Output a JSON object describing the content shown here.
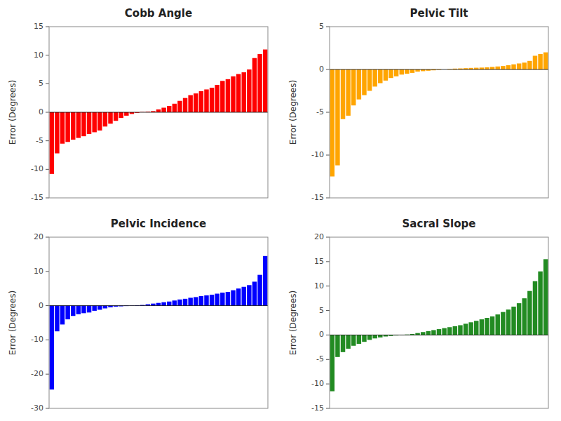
{
  "chart_data": [
    {
      "type": "bar",
      "title": "Cobb Angle",
      "y_label": "Error (Degrees)",
      "color": "#ff0000",
      "categories": [
        null,
        null,
        null,
        null,
        null,
        null,
        null,
        null,
        null,
        null,
        null,
        null,
        null,
        null,
        null,
        null,
        null,
        null,
        null,
        null,
        null,
        null,
        null,
        null,
        null,
        null,
        null,
        null,
        null,
        null,
        null,
        null,
        null,
        null,
        null,
        null,
        null,
        null,
        null,
        null,
        null
      ],
      "values": [
        -10.8,
        -7.2,
        -5.5,
        -5.2,
        -4.8,
        -4.5,
        -4.2,
        -3.8,
        -3.5,
        -3.2,
        -2.5,
        -2.0,
        -1.5,
        -1.0,
        -0.6,
        -0.3,
        -0.1,
        0.05,
        0.1,
        0.2,
        0.5,
        0.8,
        1.1,
        1.5,
        2.0,
        2.5,
        3.0,
        3.3,
        3.7,
        4.0,
        4.3,
        4.8,
        5.5,
        5.8,
        6.3,
        6.7,
        7.0,
        7.5,
        9.5,
        10.2,
        11.0
      ],
      "ylim": [
        -15,
        15
      ],
      "yticks": [
        -15,
        -10,
        -5,
        0,
        5,
        10,
        15
      ],
      "grid": false,
      "tick_labels": "y"
    },
    {
      "type": "bar",
      "title": "Pelvic Tilt",
      "y_label": "Error (Degrees)",
      "color": "#ffa500",
      "categories": [
        null,
        null,
        null,
        null,
        null,
        null,
        null,
        null,
        null,
        null,
        null,
        null,
        null,
        null,
        null,
        null,
        null,
        null,
        null,
        null,
        null,
        null,
        null,
        null,
        null,
        null,
        null,
        null,
        null,
        null,
        null,
        null,
        null,
        null,
        null,
        null,
        null,
        null,
        null,
        null,
        null
      ],
      "values": [
        -12.5,
        -11.2,
        -5.8,
        -5.4,
        -4.2,
        -3.5,
        -3.0,
        -2.5,
        -2.0,
        -1.6,
        -1.3,
        -1.0,
        -0.8,
        -0.6,
        -0.5,
        -0.4,
        -0.25,
        -0.2,
        -0.15,
        -0.1,
        -0.05,
        0.0,
        0.05,
        0.1,
        0.12,
        0.15,
        0.18,
        0.2,
        0.22,
        0.25,
        0.3,
        0.35,
        0.4,
        0.5,
        0.6,
        0.7,
        0.8,
        1.0,
        1.6,
        1.8,
        2.0
      ],
      "ylim": [
        -15,
        5
      ],
      "yticks": [
        -15,
        -10,
        -5,
        0,
        5
      ],
      "grid": false,
      "tick_labels": "y"
    },
    {
      "type": "bar",
      "title": "Pelvic Incidence",
      "y_label": "Error (Degrees)",
      "color": "#0000ff",
      "categories": [
        null,
        null,
        null,
        null,
        null,
        null,
        null,
        null,
        null,
        null,
        null,
        null,
        null,
        null,
        null,
        null,
        null,
        null,
        null,
        null,
        null,
        null,
        null,
        null,
        null,
        null,
        null,
        null,
        null,
        null,
        null,
        null,
        null,
        null,
        null,
        null,
        null,
        null,
        null,
        null,
        null
      ],
      "values": [
        -24.5,
        -7.5,
        -5.5,
        -4.0,
        -3.0,
        -2.5,
        -2.2,
        -2.0,
        -1.5,
        -1.2,
        -0.8,
        -0.5,
        -0.3,
        -0.2,
        -0.1,
        0.05,
        0.1,
        0.2,
        0.4,
        0.6,
        0.8,
        1.0,
        1.2,
        1.5,
        1.8,
        2.0,
        2.3,
        2.5,
        2.8,
        3.0,
        3.2,
        3.5,
        3.8,
        4.0,
        4.5,
        5.0,
        5.5,
        6.0,
        7.0,
        9.0,
        14.5
      ],
      "ylim": [
        -30,
        20
      ],
      "yticks": [
        -30,
        -20,
        -10,
        0,
        10,
        20
      ],
      "grid": false,
      "tick_labels": "y"
    },
    {
      "type": "bar",
      "title": "Sacral Slope",
      "y_label": "Error (Degrees)",
      "color": "#228B22",
      "categories": [
        null,
        null,
        null,
        null,
        null,
        null,
        null,
        null,
        null,
        null,
        null,
        null,
        null,
        null,
        null,
        null,
        null,
        null,
        null,
        null,
        null,
        null,
        null,
        null,
        null,
        null,
        null,
        null,
        null,
        null,
        null,
        null,
        null,
        null,
        null,
        null,
        null,
        null,
        null,
        null,
        null
      ],
      "values": [
        -11.5,
        -4.5,
        -3.5,
        -2.8,
        -2.2,
        -1.8,
        -1.4,
        -1.0,
        -0.7,
        -0.5,
        -0.3,
        -0.2,
        -0.1,
        0.05,
        0.1,
        0.2,
        0.4,
        0.6,
        0.8,
        1.0,
        1.2,
        1.4,
        1.6,
        1.8,
        2.0,
        2.3,
        2.6,
        2.9,
        3.2,
        3.5,
        3.8,
        4.2,
        4.7,
        5.2,
        5.8,
        6.5,
        7.5,
        9.0,
        11.0,
        13.0,
        15.5
      ],
      "ylim": [
        -15,
        20
      ],
      "yticks": [
        -15,
        -10,
        -5,
        0,
        5,
        10,
        15,
        20
      ],
      "grid": false,
      "tick_labels": "y"
    }
  ]
}
